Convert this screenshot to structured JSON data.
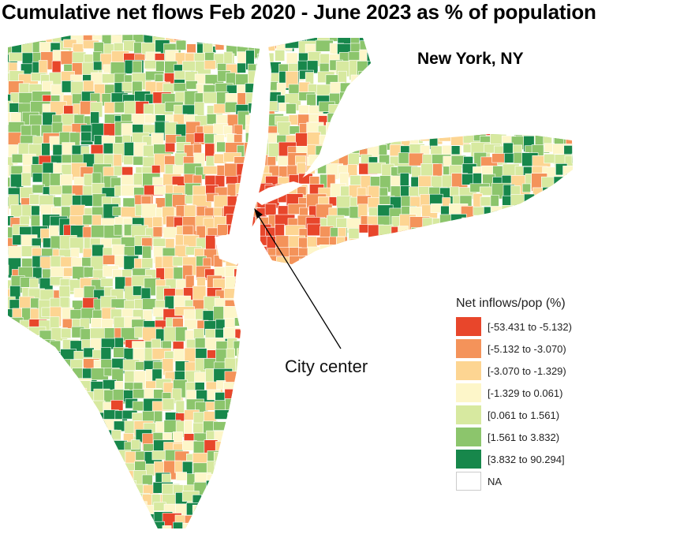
{
  "title": "Cumulative net flows Feb 2020 - June 2023 as % of population",
  "subtitle": "New York, NY",
  "annotation": "City center",
  "legend": {
    "title": "Net inflows/pop (%)",
    "items": [
      {
        "label": "[-53.431 to -5.132)",
        "color": "#e8462b"
      },
      {
        "label": "[-5.132 to -3.070)",
        "color": "#f4935a"
      },
      {
        "label": "[-3.070 to -1.329)",
        "color": "#fdd592"
      },
      {
        "label": "[-1.329 to 0.061)",
        "color": "#fdf6c9"
      },
      {
        "label": "[0.061 to 1.561)",
        "color": "#d7e9a0"
      },
      {
        "label": "[1.561 to 3.832)",
        "color": "#8cc56c"
      },
      {
        "label": "[3.832 to 90.294]",
        "color": "#17874b"
      },
      {
        "label": "NA",
        "color": "#ffffff"
      }
    ]
  },
  "colors": {
    "water": "#ffffff",
    "border": "#ffffff",
    "arrow": "#000000"
  }
}
